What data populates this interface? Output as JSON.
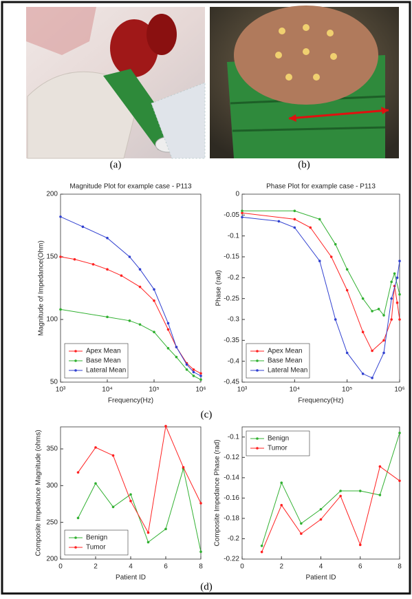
{
  "captions": [
    "(a)",
    "(b)",
    "(c)",
    "(d)"
  ],
  "chart_data": [
    {
      "type": "line",
      "title": "Magnitude Plot for example case - P113",
      "xlabel": "Frequency(Hz)",
      "ylabel": "Magnitude of Impedance(Ohm)",
      "xscale": "log",
      "xlim": [
        1000,
        1000000
      ],
      "xticks": [
        {
          "value": 1000,
          "label": "10³"
        },
        {
          "value": 10000,
          "label": "10⁴"
        },
        {
          "value": 100000,
          "label": "10⁵"
        },
        {
          "value": 1000000,
          "label": "10⁶"
        }
      ],
      "ylim": [
        50,
        200
      ],
      "yticks": [
        50,
        100,
        150,
        200
      ],
      "legend": "lower left",
      "series": [
        {
          "name": "Apex Mean",
          "color": "#ff2020",
          "x": [
            1000,
            2000,
            5000,
            10000,
            20000,
            50000,
            100000,
            200000,
            300000,
            500000,
            700000,
            1000000
          ],
          "values": [
            150,
            148,
            144,
            140,
            135,
            126,
            115,
            92,
            78,
            65,
            60,
            57
          ]
        },
        {
          "name": "Base Mean",
          "color": "#30b030",
          "x": [
            1000,
            10000,
            30000,
            50000,
            100000,
            200000,
            300000,
            500000,
            700000,
            1000000
          ],
          "values": [
            108,
            102,
            99,
            96,
            90,
            77,
            70,
            60,
            55,
            52
          ]
        },
        {
          "name": "Lateral Mean",
          "color": "#3040d0",
          "x": [
            1000,
            3000,
            10000,
            30000,
            50000,
            100000,
            200000,
            300000,
            500000,
            700000,
            1000000
          ],
          "values": [
            182,
            174,
            165,
            150,
            140,
            124,
            97,
            78,
            64,
            58,
            55
          ]
        }
      ]
    },
    {
      "type": "line",
      "title": "Phase Plot for example case - P113",
      "xlabel": "Frequency(Hz)",
      "ylabel": "Phase (rad)",
      "xscale": "log",
      "xlim": [
        1000,
        1000000
      ],
      "xticks": [
        {
          "value": 1000,
          "label": "10³"
        },
        {
          "value": 10000,
          "label": "10⁴"
        },
        {
          "value": 100000,
          "label": "10⁵"
        },
        {
          "value": 1000000,
          "label": "10⁶"
        }
      ],
      "ylim": [
        -0.45,
        0
      ],
      "yticks": [
        -0.45,
        -0.4,
        -0.35,
        -0.3,
        -0.25,
        -0.2,
        -0.15,
        -0.1,
        -0.05,
        0
      ],
      "legend": "lower left",
      "series": [
        {
          "name": "Apex Mean",
          "color": "#ff2020",
          "x": [
            1000,
            10000,
            20000,
            50000,
            100000,
            200000,
            300000,
            500000,
            700000,
            800000,
            900000,
            1000000
          ],
          "values": [
            -0.045,
            -0.06,
            -0.08,
            -0.15,
            -0.23,
            -0.33,
            -0.375,
            -0.35,
            -0.3,
            -0.22,
            -0.26,
            -0.3
          ]
        },
        {
          "name": "Base Mean",
          "color": "#30b030",
          "x": [
            1000,
            10000,
            30000,
            60000,
            100000,
            200000,
            300000,
            400000,
            500000,
            700000,
            800000,
            1000000
          ],
          "values": [
            -0.04,
            -0.04,
            -0.06,
            -0.12,
            -0.18,
            -0.25,
            -0.28,
            -0.275,
            -0.29,
            -0.21,
            -0.19,
            -0.24
          ]
        },
        {
          "name": "Lateral Mean",
          "color": "#3040d0",
          "x": [
            1000,
            5000,
            10000,
            30000,
            60000,
            100000,
            200000,
            300000,
            500000,
            700000,
            900000,
            1000000
          ],
          "values": [
            -0.055,
            -0.065,
            -0.08,
            -0.16,
            -0.3,
            -0.38,
            -0.43,
            -0.44,
            -0.38,
            -0.25,
            -0.2,
            -0.16
          ]
        }
      ]
    },
    {
      "type": "line",
      "xlabel": "Patient ID",
      "ylabel": "Composite Impedance Magnitude (ohms)",
      "x": [
        1,
        2,
        3,
        4,
        5,
        6,
        7,
        8
      ],
      "xlim": [
        0,
        8
      ],
      "xticks": [
        0,
        2,
        4,
        6,
        8
      ],
      "ylim": [
        200,
        380
      ],
      "yticks": [
        200,
        250,
        300,
        350
      ],
      "legend": "lower left",
      "series": [
        {
          "name": "Benign",
          "color": "#30b030",
          "values": [
            256,
            303,
            271,
            288,
            223,
            241,
            323,
            210
          ]
        },
        {
          "name": "Tumor",
          "color": "#ff2020",
          "values": [
            318,
            352,
            341,
            279,
            236,
            381,
            325,
            276
          ]
        }
      ]
    },
    {
      "type": "line",
      "xlabel": "Patient ID",
      "ylabel": "Composite Impedance Phase (rad)",
      "x": [
        1,
        2,
        3,
        4,
        5,
        6,
        7,
        8
      ],
      "xlim": [
        0,
        8
      ],
      "xticks": [
        0,
        2,
        4,
        6,
        8
      ],
      "ylim": [
        -0.22,
        -0.09
      ],
      "yticks": [
        -0.22,
        -0.2,
        -0.18,
        -0.16,
        -0.14,
        -0.12,
        -0.1
      ],
      "legend": "upper left",
      "series": [
        {
          "name": "Benign",
          "color": "#30b030",
          "values": [
            -0.207,
            -0.145,
            -0.185,
            -0.171,
            -0.153,
            -0.153,
            -0.157,
            -0.096
          ]
        },
        {
          "name": "Tumor",
          "color": "#ff2020",
          "values": [
            -0.213,
            -0.167,
            -0.195,
            -0.181,
            -0.158,
            -0.206,
            -0.129,
            -0.143
          ]
        }
      ]
    }
  ]
}
